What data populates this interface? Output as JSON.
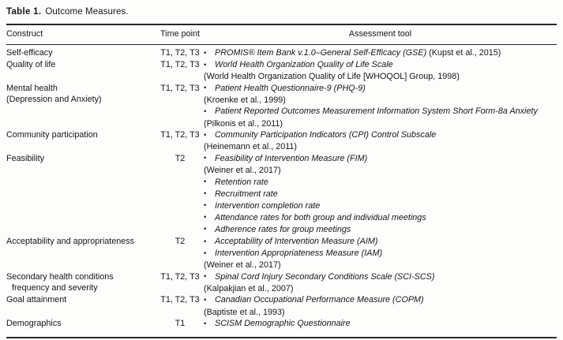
{
  "icons": {
    "bullet": "•"
  },
  "table": {
    "caption": {
      "label": "Table 1.",
      "title": "Outcome Measures."
    },
    "columns": [
      "Construct",
      "Time point",
      "Assessment tool"
    ],
    "rows": [
      {
        "construct": [
          {
            "text": "Self-efficacy"
          }
        ],
        "time": "T1, T2, T3",
        "items": [
          {
            "bullet": true,
            "italic": "PROMIS® Item Bank v.1.0–General Self-Efficacy (GSE)",
            "plain": " (Kupst et al., 2015)"
          }
        ]
      },
      {
        "construct": [
          {
            "text": "Quality of life"
          }
        ],
        "time": "T1, T2, T3",
        "items": [
          {
            "bullet": true,
            "italic": "World Health Organization Quality of Life Scale"
          },
          {
            "bullet": false,
            "plain": "(World Health Organization Quality of Life [WHOQOL] Group, 1998)"
          }
        ]
      },
      {
        "construct": [
          {
            "text": "Mental health"
          },
          {
            "text": "(Depression and Anxiety)"
          }
        ],
        "time": "T1, T2, T3",
        "items": [
          {
            "bullet": true,
            "italic": "Patient Health Questionnaire-9 (PHQ-9)"
          },
          {
            "bullet": false,
            "plain": "(Kroenke et al., 1999)"
          },
          {
            "bullet": true,
            "italic": "Patient Reported Outcomes Measurement Information System Short Form-8a Anxiety"
          },
          {
            "bullet": false,
            "plain": "(Pilkonis et al., 2011)"
          }
        ]
      },
      {
        "construct": [
          {
            "text": "Community participation"
          }
        ],
        "time": "T1, T2, T3",
        "items": [
          {
            "bullet": true,
            "italic": "Community Participation Indicators (CPI) Control Subscale"
          },
          {
            "bullet": false,
            "plain": "(Heinemann et al., 2011)"
          }
        ]
      },
      {
        "construct": [
          {
            "text": "Feasibility"
          }
        ],
        "time": "T2",
        "items": [
          {
            "bullet": true,
            "italic": "Feasibility of Intervention Measure (FIM)"
          },
          {
            "bullet": false,
            "plain": "(Weiner et al., 2017)"
          },
          {
            "bullet": true,
            "italic": "Retention rate"
          },
          {
            "bullet": true,
            "italic": "Recruitment rate"
          },
          {
            "bullet": true,
            "italic": "Intervention completion rate"
          },
          {
            "bullet": true,
            "italic": "Attendance rates for both group and individual meetings"
          },
          {
            "bullet": true,
            "italic": "Adherence rates for group meetings"
          }
        ]
      },
      {
        "construct": [
          {
            "text": "Acceptability and appropriateness"
          }
        ],
        "time": "T2",
        "items": [
          {
            "bullet": true,
            "italic": "Acceptability of Intervention Measure (AIM)"
          },
          {
            "bullet": true,
            "italic": "Intervention Appropriateness Measure (IAM)"
          },
          {
            "bullet": false,
            "plain": "(Weiner et al., 2017)"
          }
        ]
      },
      {
        "construct": [
          {
            "text": "Secondary health conditions"
          },
          {
            "text": "frequency and severity",
            "indent": true
          }
        ],
        "time": "T1, T2, T3",
        "items": [
          {
            "bullet": true,
            "italic": "Spinal Cord Injury Secondary Conditions Scale (SCI-SCS)"
          },
          {
            "bullet": false,
            "plain": "(Kalpakjian et al., 2007)"
          }
        ]
      },
      {
        "construct": [
          {
            "text": "Goal attainment"
          }
        ],
        "time": "T1, T2, T3",
        "items": [
          {
            "bullet": true,
            "italic": "Canadian Occupational Performance Measure (COPM)"
          },
          {
            "bullet": false,
            "plain": "(Baptiste et al., 1993)"
          }
        ]
      },
      {
        "construct": [
          {
            "text": "Demographics"
          }
        ],
        "time": "T1",
        "items": [
          {
            "bullet": true,
            "italic": "SCISM Demographic Questionnaire"
          }
        ]
      }
    ]
  }
}
